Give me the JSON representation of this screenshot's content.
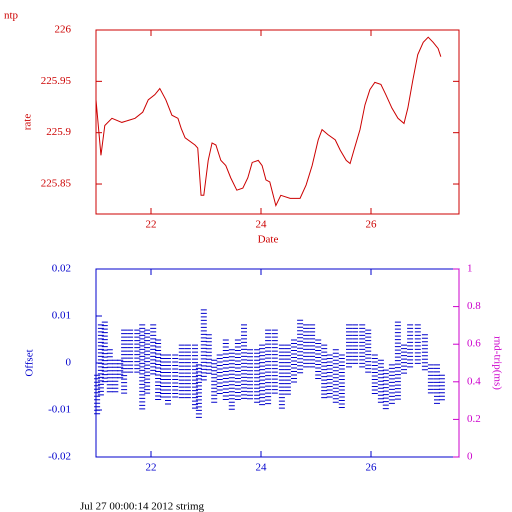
{
  "chart_data": [
    {
      "type": "line",
      "title": "ntp",
      "ylabel": "rate",
      "xlabel": "Date",
      "color": "#cc0000",
      "xlim": [
        21.0,
        27.6
      ],
      "xticks": [
        22,
        24,
        26
      ],
      "ylim": [
        225.8208,
        226.0
      ],
      "yticks": [
        225.85,
        225.9,
        225.95,
        226
      ],
      "x": [
        21.0,
        21.09,
        21.16,
        21.29,
        21.47,
        21.71,
        21.85,
        21.95,
        22.07,
        22.16,
        22.27,
        22.38,
        22.49,
        22.55,
        22.62,
        22.8,
        22.85,
        22.91,
        22.96,
        23.04,
        23.11,
        23.18,
        23.27,
        23.36,
        23.45,
        23.56,
        23.67,
        23.76,
        23.84,
        23.95,
        24.02,
        24.09,
        24.16,
        24.27,
        24.36,
        24.53,
        24.71,
        24.82,
        24.93,
        25.04,
        25.11,
        25.22,
        25.35,
        25.44,
        25.55,
        25.62,
        25.69,
        25.8,
        25.89,
        25.98,
        26.07,
        26.18,
        26.27,
        26.38,
        26.49,
        26.6,
        26.67,
        26.76,
        26.85,
        26.95,
        27.04,
        27.13,
        27.22,
        27.27
      ],
      "values": [
        225.932,
        225.878,
        225.907,
        225.914,
        225.91,
        225.914,
        225.92,
        225.932,
        225.937,
        225.943,
        225.932,
        225.917,
        225.914,
        225.904,
        225.895,
        225.888,
        225.885,
        225.839,
        225.839,
        225.873,
        225.89,
        225.888,
        225.873,
        225.868,
        225.856,
        225.844,
        225.846,
        225.856,
        225.871,
        225.873,
        225.868,
        225.854,
        225.852,
        225.829,
        225.839,
        225.836,
        225.836,
        225.849,
        225.868,
        225.893,
        225.903,
        225.898,
        225.893,
        225.883,
        225.873,
        225.87,
        225.883,
        225.903,
        225.927,
        225.942,
        225.949,
        225.947,
        225.937,
        225.924,
        225.914,
        225.909,
        225.924,
        225.951,
        225.976,
        225.988,
        225.993,
        225.988,
        225.982,
        225.974
      ]
    },
    {
      "type": "range",
      "ylabel": "Offset",
      "y2label": "rnd-trip(ms)",
      "color": "#0000cc",
      "y2_color": "#cc00cc",
      "xlim": [
        21.0,
        27.6
      ],
      "xticks": [
        22,
        24,
        26
      ],
      "ylim": [
        -0.02,
        0.02
      ],
      "yticks": [
        -0.02,
        -0.01,
        0,
        0.01,
        0.02
      ],
      "y2lim": [
        0,
        1
      ],
      "y2ticks": [
        0,
        0.2,
        0.4,
        0.6,
        0.8,
        1
      ],
      "footer": "Jul 27 00:00:14 2012 strimg",
      "x": [
        21.02,
        21.09,
        21.16,
        21.25,
        21.35,
        21.44,
        21.51,
        21.62,
        21.75,
        21.84,
        21.93,
        22.04,
        22.13,
        22.22,
        22.31,
        22.44,
        22.56,
        22.67,
        22.8,
        22.87,
        22.96,
        23.05,
        23.15,
        23.25,
        23.36,
        23.47,
        23.58,
        23.69,
        23.8,
        23.93,
        24.02,
        24.13,
        24.25,
        24.38,
        24.49,
        24.6,
        24.71,
        24.82,
        24.93,
        25.04,
        25.15,
        25.25,
        25.36,
        25.47,
        25.6,
        25.71,
        25.84,
        25.95,
        26.07,
        26.18,
        26.27,
        26.38,
        26.49,
        26.6,
        26.71,
        26.85,
        26.98,
        27.09,
        27.2,
        27.29
      ],
      "high": [
        -0.0026,
        0.0081,
        0.0087,
        0.0028,
        0.0006,
        0.0006,
        0.007,
        0.007,
        0.007,
        0.0081,
        0.007,
        0.0081,
        0.0049,
        0.0017,
        0.0017,
        0.0017,
        0.0038,
        0.0038,
        0.0038,
        -0.0004,
        0.0113,
        0.006,
        0.0006,
        0.0017,
        0.0049,
        0.0028,
        0.0049,
        0.0081,
        0.0028,
        0.0028,
        0.0038,
        0.007,
        0.007,
        0.0038,
        0.0038,
        0.0049,
        0.0091,
        0.0081,
        0.0081,
        0.0049,
        0.0038,
        0.0017,
        0.0028,
        0.0017,
        0.0081,
        0.0081,
        0.0081,
        0.007,
        0.0017,
        0.0006,
        -0.0015,
        -0.0004,
        0.0087,
        0.0038,
        0.0081,
        0.0081,
        0.006,
        -0.0004,
        -0.0004,
        -0.0026
      ],
      "low": [
        -0.0111,
        -0.0068,
        -0.0047,
        -0.0062,
        -0.0068,
        -0.0036,
        -0.0068,
        -0.0026,
        -0.0026,
        -0.01,
        -0.0068,
        -0.0026,
        -0.0079,
        -0.0079,
        -0.0089,
        -0.0079,
        -0.0079,
        -0.0079,
        -0.01,
        -0.0121,
        -0.0036,
        -0.0026,
        -0.0089,
        -0.0068,
        -0.0079,
        -0.01,
        -0.0079,
        -0.0079,
        -0.0079,
        -0.0089,
        -0.0089,
        -0.0089,
        -0.0068,
        -0.01,
        -0.0068,
        -0.0047,
        -0.0026,
        -0.0015,
        -0.0015,
        -0.0036,
        -0.0079,
        -0.0079,
        -0.0089,
        -0.01,
        -0.0015,
        -0.0004,
        -0.0015,
        -0.0026,
        -0.0068,
        -0.0089,
        -0.01,
        -0.0089,
        -0.0079,
        -0.0026,
        -0.0015,
        -0.0004,
        -0.0015,
        -0.0068,
        -0.0089,
        -0.0079
      ]
    }
  ]
}
